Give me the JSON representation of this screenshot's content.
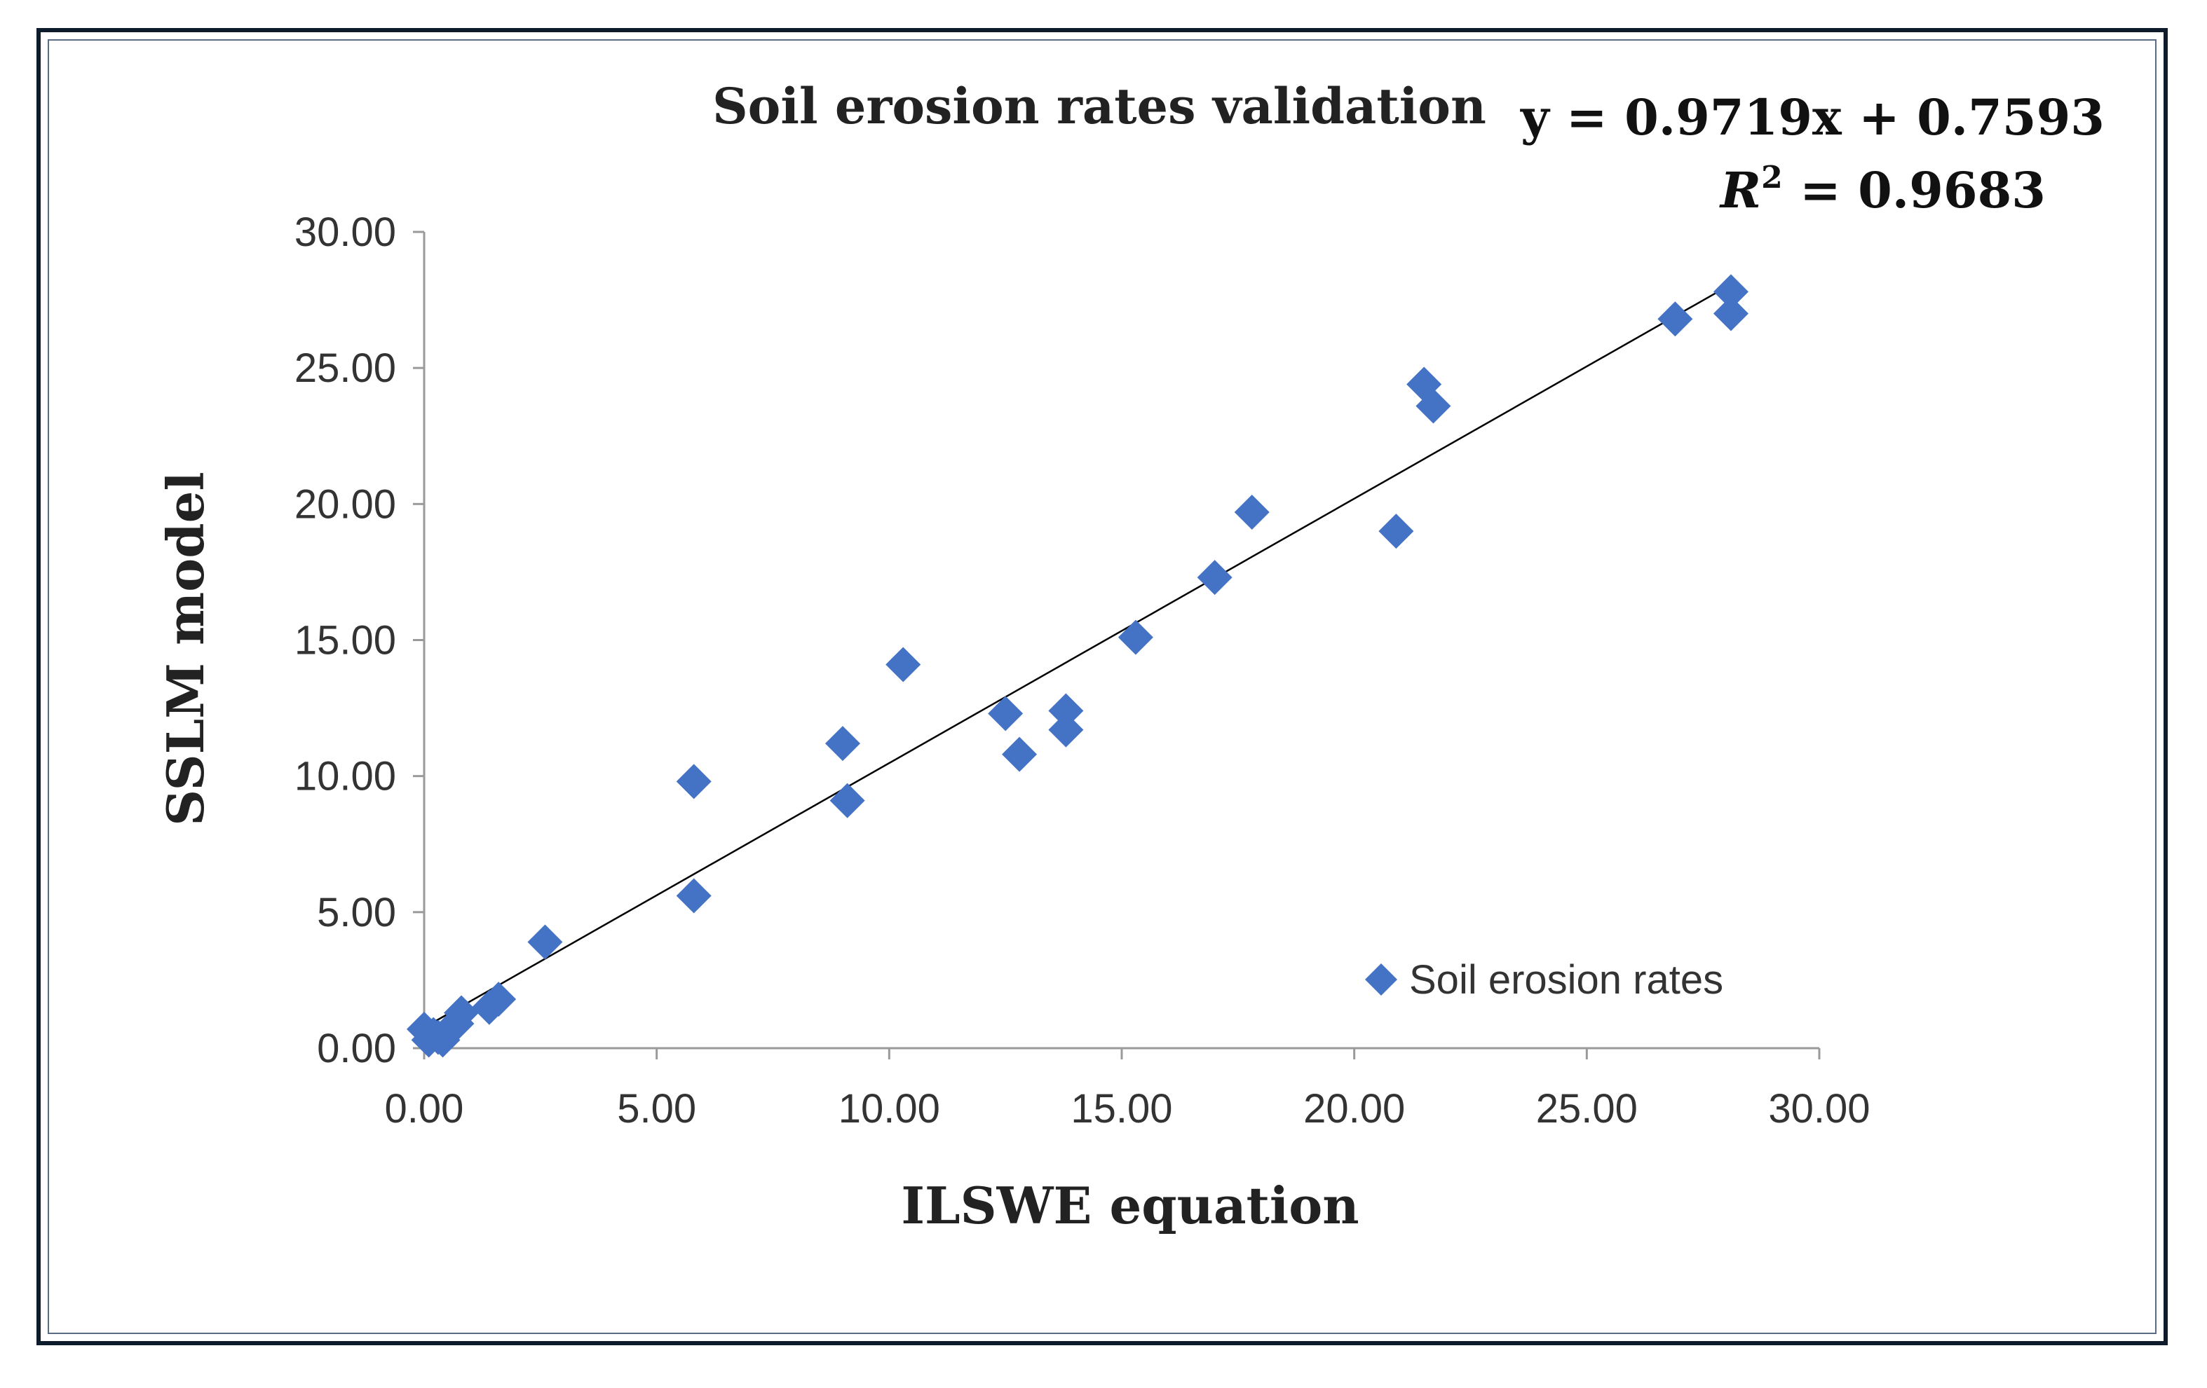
{
  "chart_data": {
    "type": "scatter",
    "title": "Soil erosion rates validation",
    "xlabel": "ILSWE equation",
    "ylabel": "SSLM model",
    "xlim": [
      0,
      30
    ],
    "ylim": [
      0,
      30
    ],
    "xticks": [
      "0.00",
      "5.00",
      "10.00",
      "15.00",
      "20.00",
      "25.00",
      "30.00"
    ],
    "yticks": [
      "0.00",
      "5.00",
      "10.00",
      "15.00",
      "20.00",
      "25.00",
      "30.00"
    ],
    "grid": false,
    "legend": {
      "label": "Soil erosion rates",
      "position": "bottom-right"
    },
    "marker_color": "#4472c4",
    "trendline": {
      "slope": 0.9719,
      "intercept": 0.7593,
      "x_range": [
        0,
        28.1
      ],
      "equation": "y = 0.9719x + 0.7593",
      "r2_label": "R",
      "r2_sup": "2",
      "r2_value": " = 0.9683"
    },
    "series": [
      {
        "name": "Soil erosion rates",
        "points": [
          [
            0.0,
            0.7
          ],
          [
            0.1,
            0.3
          ],
          [
            0.2,
            0.5
          ],
          [
            0.3,
            0.4
          ],
          [
            0.4,
            0.3
          ],
          [
            0.5,
            0.6
          ],
          [
            0.7,
            0.9
          ],
          [
            0.8,
            1.3
          ],
          [
            1.4,
            1.5
          ],
          [
            1.6,
            1.8
          ],
          [
            2.6,
            3.9
          ],
          [
            5.8,
            9.8
          ],
          [
            5.8,
            5.6
          ],
          [
            9.0,
            11.2
          ],
          [
            9.1,
            9.1
          ],
          [
            10.3,
            14.1
          ],
          [
            12.5,
            12.3
          ],
          [
            12.8,
            10.8
          ],
          [
            13.8,
            12.4
          ],
          [
            13.8,
            11.7
          ],
          [
            15.3,
            15.1
          ],
          [
            17.0,
            17.3
          ],
          [
            17.8,
            19.7
          ],
          [
            20.9,
            19.0
          ],
          [
            21.5,
            24.4
          ],
          [
            21.7,
            23.6
          ],
          [
            26.9,
            26.8
          ],
          [
            28.1,
            27.8
          ],
          [
            28.1,
            27.0
          ]
        ]
      }
    ]
  }
}
